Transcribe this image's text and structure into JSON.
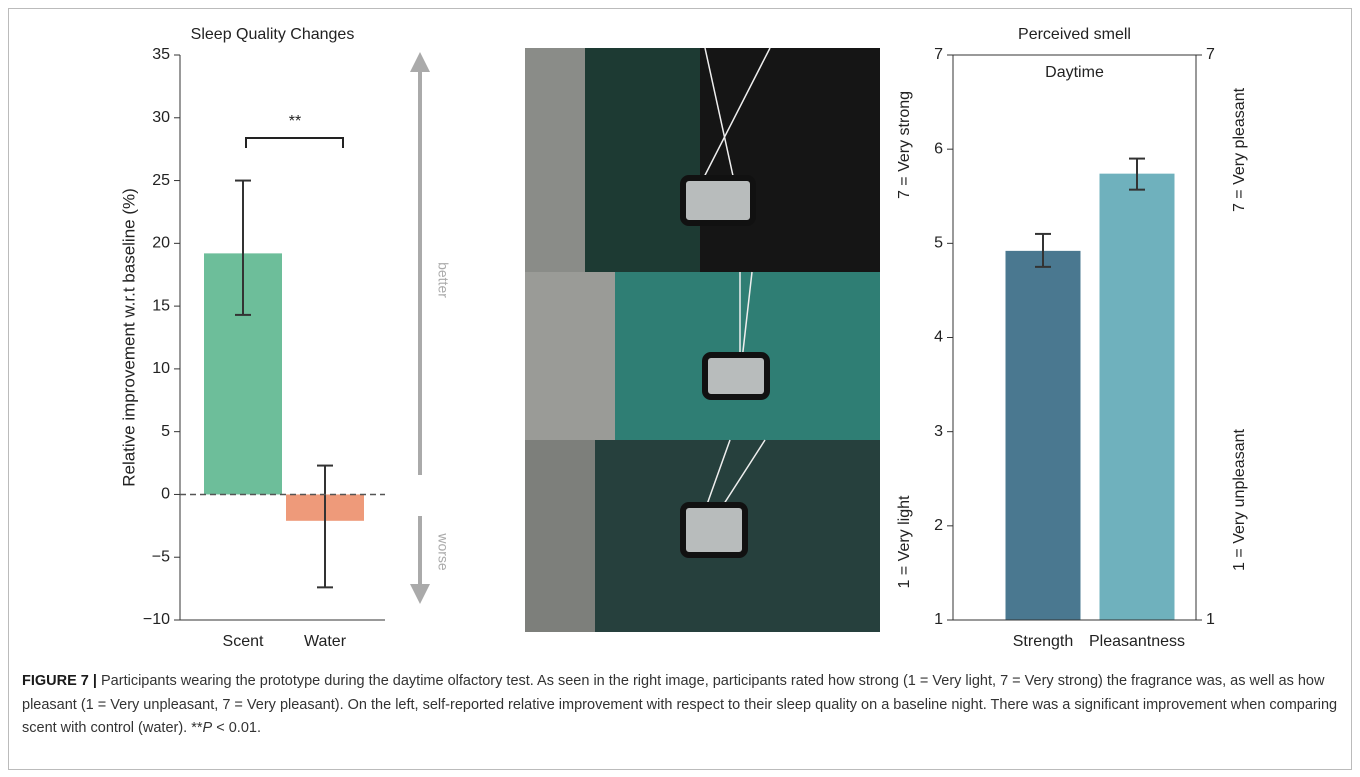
{
  "chart_data": [
    {
      "type": "bar",
      "title": "Sleep Quality Changes",
      "ylabel": "Relative improvement w.r.t baseline (%)",
      "categories": [
        "Scent",
        "Water"
      ],
      "values": [
        19.2,
        -2.1
      ],
      "err_low": [
        14.3,
        -7.4
      ],
      "err_high": [
        25.0,
        2.3
      ],
      "colors": [
        "#6dbe9a",
        "#ee9a7a"
      ],
      "ylim": [
        -10,
        35
      ],
      "yticks": [
        {
          "value": -10,
          "label": "−10"
        },
        {
          "value": -5,
          "label": "−5"
        },
        0,
        5,
        10,
        15,
        20,
        25,
        30,
        35
      ],
      "annotation": "**",
      "arrow_up_label": "better",
      "arrow_down_label": "worse"
    },
    {
      "type": "bar",
      "title": "Perceived smell",
      "subtitle": "Daytime",
      "categories": [
        "Strength",
        "Pleasantness"
      ],
      "values": [
        4.92,
        5.74
      ],
      "err_low": [
        4.75,
        5.57
      ],
      "err_high": [
        5.1,
        5.9
      ],
      "colors": [
        "#4a7890",
        "#6fb1bd"
      ],
      "ylim": [
        1,
        7
      ],
      "yticks": [
        1,
        2,
        3,
        4,
        5,
        6,
        7
      ],
      "y2lim": [
        1,
        7
      ],
      "y2ticks": [
        1,
        7
      ],
      "ylabel_top": "7 = Very strong",
      "ylabel_bottom": "1 = Very light",
      "y2label_top": "7 = Very pleasant",
      "y2label_bottom": "1 = Very unpleasant"
    }
  ],
  "caption": {
    "label": "FIGURE 7 |",
    "text": "Participants wearing the prototype during the daytime olfactory test. As seen in the right image, participants rated how strong (1 = Very light, 7 = Very strong) the fragrance was, as well as how pleasant (1 = Very unpleasant, 7 = Very pleasant). On the left, self-reported relative improvement with respect to their sleep quality on a baseline night. There was a significant improvement when comparing scent with control (water).",
    "significance": "**",
    "p_symbol": "P",
    "p_value": "< 0.01."
  }
}
